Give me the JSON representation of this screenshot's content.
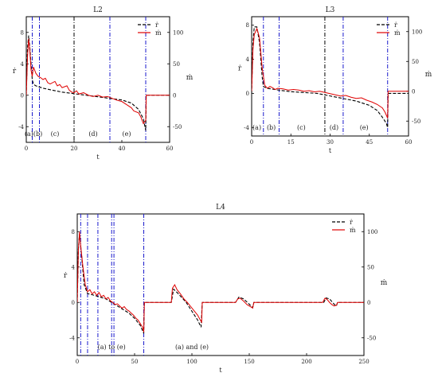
{
  "chart_data": [
    {
      "type": "line",
      "title": "L2",
      "xlabel": "t",
      "ylabel_left": "ṙ",
      "ylabel_right": "ṁ",
      "xlim": [
        0,
        60
      ],
      "ylim_left": [
        -6,
        10
      ],
      "ylim_right": [
        -75,
        125
      ],
      "xticks": [
        0,
        20,
        40,
        60
      ],
      "yticks_left": [
        -4,
        0,
        4,
        8
      ],
      "yticks_right": [
        -50,
        0,
        50,
        100
      ],
      "legend": {
        "position": "top-right",
        "entries": [
          "ṙ",
          "ṁ"
        ]
      },
      "vlines": [
        {
          "x": 2.5,
          "style": "dashdot-blue"
        },
        {
          "x": 5.5,
          "style": "dashdot-blue"
        },
        {
          "x": 20,
          "style": "dashdot-black"
        },
        {
          "x": 35,
          "style": "dashdot-blue"
        },
        {
          "x": 50,
          "style": "dashdot-blue"
        }
      ],
      "phase_labels": [
        {
          "text": "(a)(b)",
          "x": 3
        },
        {
          "text": "(c)",
          "x": 12
        },
        {
          "text": "(d)",
          "x": 28
        },
        {
          "text": "(e)",
          "x": 42
        }
      ],
      "series": [
        {
          "name": "ṙ",
          "axis": "left",
          "color": "#000000",
          "dash": true,
          "points": [
            [
              0,
              0
            ],
            [
              0.5,
              6
            ],
            [
              1,
              7.6
            ],
            [
              1.5,
              6
            ],
            [
              2,
              4
            ],
            [
              2.5,
              2
            ],
            [
              3,
              1.4
            ],
            [
              4,
              1.2
            ],
            [
              5,
              1.1
            ],
            [
              7,
              0.9
            ],
            [
              10,
              0.7
            ],
            [
              15,
              0.4
            ],
            [
              20,
              0.2
            ],
            [
              25,
              0
            ],
            [
              30,
              -0.2
            ],
            [
              35,
              -0.4
            ],
            [
              40,
              -0.6
            ],
            [
              44,
              -1
            ],
            [
              47,
              -1.8
            ],
            [
              49,
              -3
            ],
            [
              50,
              -4.5
            ],
            [
              50.2,
              0
            ],
            [
              60,
              0
            ]
          ]
        },
        {
          "name": "ṁ",
          "axis": "right",
          "color": "#e00000",
          "dash": false,
          "points": [
            [
              0,
              0
            ],
            [
              0.5,
              60
            ],
            [
              1,
              90
            ],
            [
              1.5,
              70
            ],
            [
              2,
              40
            ],
            [
              2.5,
              30
            ],
            [
              3,
              45
            ],
            [
              4,
              35
            ],
            [
              5,
              30
            ],
            [
              6,
              28
            ],
            [
              7,
              25
            ],
            [
              8,
              27
            ],
            [
              9,
              20
            ],
            [
              10,
              18
            ],
            [
              12,
              22
            ],
            [
              13,
              15
            ],
            [
              14,
              17
            ],
            [
              15,
              12
            ],
            [
              17,
              15
            ],
            [
              18,
              8
            ],
            [
              19,
              5
            ],
            [
              20,
              4
            ],
            [
              21,
              7
            ],
            [
              22,
              2
            ],
            [
              24,
              4
            ],
            [
              26,
              0
            ],
            [
              28,
              -2
            ],
            [
              30,
              0
            ],
            [
              32,
              -3
            ],
            [
              34,
              -2
            ],
            [
              36,
              -5
            ],
            [
              38,
              -8
            ],
            [
              40,
              -10
            ],
            [
              42,
              -15
            ],
            [
              44,
              -20
            ],
            [
              45,
              -25
            ],
            [
              47,
              -28
            ],
            [
              48,
              -35
            ],
            [
              49,
              -45
            ],
            [
              50,
              -40
            ],
            [
              50.2,
              0
            ],
            [
              60,
              0
            ]
          ]
        }
      ]
    },
    {
      "type": "line",
      "title": "L3",
      "xlabel": "t",
      "ylabel_left": "ṙ",
      "ylabel_right": "ṁ",
      "xlim": [
        0,
        60
      ],
      "ylim_left": [
        -5,
        9
      ],
      "ylim_right": [
        -75,
        125
      ],
      "xticks": [
        0,
        15,
        30,
        45,
        60
      ],
      "yticks_left": [
        -4,
        0,
        4,
        8
      ],
      "yticks_right": [
        -50,
        0,
        50,
        100
      ],
      "legend": {
        "position": "top-right",
        "entries": [
          "ṙ",
          "ṁ"
        ]
      },
      "vlines": [
        {
          "x": 4.5,
          "style": "dashdot-blue"
        },
        {
          "x": 10.5,
          "style": "dashdot-blue"
        },
        {
          "x": 28,
          "style": "dashdot-black"
        },
        {
          "x": 35,
          "style": "dashdot-blue"
        },
        {
          "x": 52,
          "style": "dashdot-blue"
        }
      ],
      "phase_labels": [
        {
          "text": "(a)",
          "x": 2
        },
        {
          "text": "(b)",
          "x": 7.5
        },
        {
          "text": "(c)",
          "x": 19
        },
        {
          "text": "(d)",
          "x": 31.5
        },
        {
          "text": "(e)",
          "x": 43
        }
      ],
      "series": [
        {
          "name": "ṙ",
          "axis": "left",
          "color": "#000000",
          "dash": true,
          "points": [
            [
              0,
              0
            ],
            [
              0.5,
              6
            ],
            [
              1,
              7.8
            ],
            [
              2,
              7.8
            ],
            [
              3,
              6
            ],
            [
              4,
              2
            ],
            [
              4.5,
              0.8
            ],
            [
              6,
              0.6
            ],
            [
              10,
              0.4
            ],
            [
              15,
              0.2
            ],
            [
              20,
              0.1
            ],
            [
              25,
              0
            ],
            [
              30,
              -0.3
            ],
            [
              35,
              -0.6
            ],
            [
              40,
              -0.9
            ],
            [
              45,
              -1.4
            ],
            [
              48,
              -2
            ],
            [
              50,
              -2.8
            ],
            [
              51.5,
              -3.5
            ],
            [
              52,
              -4
            ],
            [
              52.2,
              0
            ],
            [
              60,
              0
            ]
          ]
        },
        {
          "name": "ṁ",
          "axis": "right",
          "color": "#e00000",
          "dash": false,
          "points": [
            [
              0,
              0
            ],
            [
              0.5,
              70
            ],
            [
              1,
              95
            ],
            [
              2,
              105
            ],
            [
              3,
              90
            ],
            [
              4,
              40
            ],
            [
              5,
              10
            ],
            [
              6,
              5
            ],
            [
              7,
              8
            ],
            [
              8,
              6
            ],
            [
              9,
              3
            ],
            [
              10,
              5
            ],
            [
              12,
              4
            ],
            [
              14,
              2
            ],
            [
              16,
              3
            ],
            [
              18,
              2
            ],
            [
              20,
              0
            ],
            [
              22,
              1
            ],
            [
              24,
              -1
            ],
            [
              26,
              0
            ],
            [
              28,
              -2
            ],
            [
              30,
              -4
            ],
            [
              32,
              -6
            ],
            [
              34,
              -8
            ],
            [
              36,
              -7
            ],
            [
              38,
              -10
            ],
            [
              40,
              -12
            ],
            [
              42,
              -11
            ],
            [
              44,
              -15
            ],
            [
              46,
              -18
            ],
            [
              48,
              -22
            ],
            [
              50,
              -28
            ],
            [
              51,
              -35
            ],
            [
              52,
              -45
            ],
            [
              52.2,
              0
            ],
            [
              60,
              0
            ]
          ]
        }
      ]
    },
    {
      "type": "line",
      "title": "L4",
      "xlabel": "t",
      "ylabel_left": "ṙ",
      "ylabel_right": "ṁ",
      "xlim": [
        0,
        250
      ],
      "ylim_left": [
        -6,
        10
      ],
      "ylim_right": [
        -75,
        125
      ],
      "xticks": [
        0,
        50,
        100,
        150,
        200,
        250
      ],
      "yticks_left": [
        -4,
        0,
        4,
        8
      ],
      "yticks_right": [
        -50,
        0,
        50,
        100
      ],
      "legend": {
        "position": "top-right",
        "entries": [
          "ṙ",
          "ṁ"
        ]
      },
      "vlines": [
        {
          "x": 3,
          "style": "dashdot-blue"
        },
        {
          "x": 9,
          "style": "dashdot-blue"
        },
        {
          "x": 18,
          "style": "dashdot-blue"
        },
        {
          "x": 30,
          "style": "dashdot-blue"
        },
        {
          "x": 32,
          "style": "dashdot-blue"
        },
        {
          "x": 58,
          "style": "dashdot-blue"
        }
      ],
      "phase_labels": [
        {
          "text": "(a) to (e)",
          "x": 30
        },
        {
          "text": "(a) and (e)",
          "x": 100
        }
      ],
      "series": [
        {
          "name": "ṙ",
          "axis": "left",
          "color": "#000000",
          "dash": true,
          "points": [
            [
              0,
              0
            ],
            [
              1,
              6
            ],
            [
              2,
              7.8
            ],
            [
              4,
              5
            ],
            [
              6,
              2
            ],
            [
              9,
              1
            ],
            [
              15,
              0.8
            ],
            [
              20,
              0.6
            ],
            [
              25,
              0.4
            ],
            [
              30,
              0
            ],
            [
              35,
              -0.4
            ],
            [
              40,
              -0.8
            ],
            [
              45,
              -1.2
            ],
            [
              50,
              -1.8
            ],
            [
              55,
              -2.6
            ],
            [
              58,
              -3.5
            ],
            [
              58.5,
              0
            ],
            [
              82,
              0
            ],
            [
              84,
              1.5
            ],
            [
              88,
              1
            ],
            [
              95,
              0
            ],
            [
              100,
              -1
            ],
            [
              105,
              -2
            ],
            [
              108,
              -2.8
            ],
            [
              109,
              0
            ],
            [
              138,
              0
            ],
            [
              141,
              0.6
            ],
            [
              145,
              0.4
            ],
            [
              150,
              -0.2
            ],
            [
              153,
              -0.6
            ],
            [
              154,
              0
            ],
            [
              215,
              0
            ],
            [
              217,
              0.5
            ],
            [
              220,
              0.4
            ],
            [
              224,
              -0.2
            ],
            [
              226,
              -0.4
            ],
            [
              227,
              0
            ],
            [
              250,
              0
            ]
          ]
        },
        {
          "name": "ṁ",
          "axis": "right",
          "color": "#e00000",
          "dash": false,
          "points": [
            [
              0,
              0
            ],
            [
              1,
              75
            ],
            [
              2,
              100
            ],
            [
              3,
              80
            ],
            [
              5,
              50
            ],
            [
              7,
              25
            ],
            [
              9,
              15
            ],
            [
              11,
              18
            ],
            [
              13,
              12
            ],
            [
              15,
              15
            ],
            [
              17,
              10
            ],
            [
              19,
              14
            ],
            [
              21,
              8
            ],
            [
              23,
              10
            ],
            [
              25,
              5
            ],
            [
              27,
              7
            ],
            [
              29,
              2
            ],
            [
              31,
              0
            ],
            [
              33,
              -3
            ],
            [
              35,
              -2
            ],
            [
              37,
              -5
            ],
            [
              39,
              -8
            ],
            [
              41,
              -6
            ],
            [
              43,
              -10
            ],
            [
              45,
              -12
            ],
            [
              47,
              -15
            ],
            [
              49,
              -18
            ],
            [
              51,
              -22
            ],
            [
              53,
              -25
            ],
            [
              55,
              -30
            ],
            [
              57,
              -35
            ],
            [
              58,
              -42
            ],
            [
              58.5,
              0
            ],
            [
              82,
              0
            ],
            [
              83,
              20
            ],
            [
              85,
              25
            ],
            [
              87,
              18
            ],
            [
              90,
              12
            ],
            [
              93,
              5
            ],
            [
              96,
              0
            ],
            [
              99,
              -6
            ],
            [
              102,
              -12
            ],
            [
              105,
              -18
            ],
            [
              107,
              -24
            ],
            [
              108.5,
              -28
            ],
            [
              109,
              0
            ],
            [
              138,
              0
            ],
            [
              140,
              5
            ],
            [
              142,
              6
            ],
            [
              145,
              2
            ],
            [
              148,
              -3
            ],
            [
              151,
              -6
            ],
            [
              153,
              -8
            ],
            [
              154,
              0
            ],
            [
              214,
              0
            ],
            [
              216,
              6
            ],
            [
              218,
              4
            ],
            [
              220,
              0
            ],
            [
              222,
              -3
            ],
            [
              224,
              -5
            ],
            [
              226,
              -4
            ],
            [
              227,
              0
            ],
            [
              250,
              0
            ]
          ]
        }
      ]
    }
  ]
}
